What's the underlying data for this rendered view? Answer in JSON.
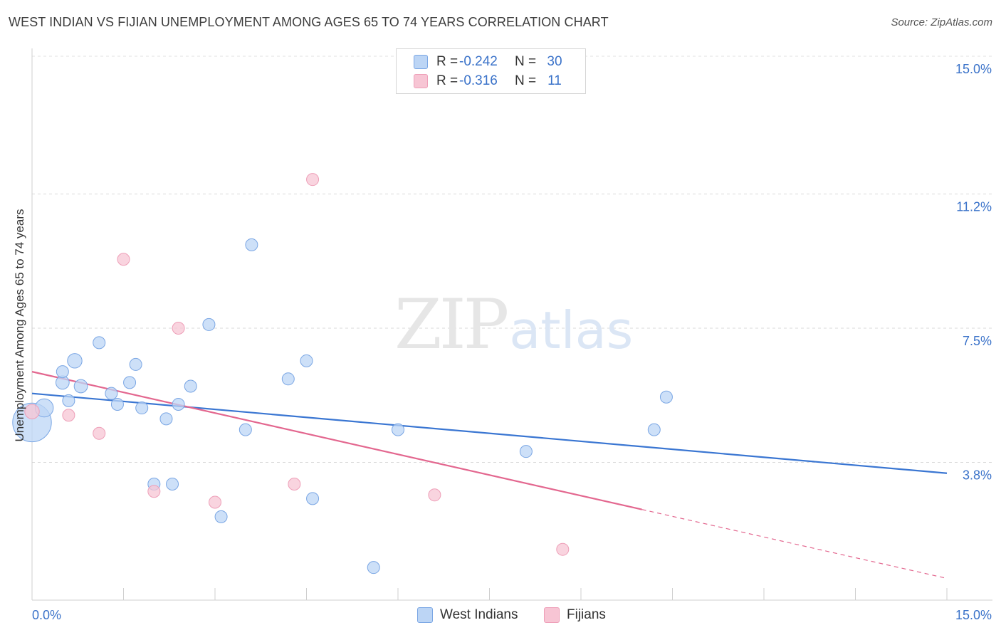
{
  "chart_data": {
    "type": "scatter",
    "title": "WEST INDIAN VS FIJIAN UNEMPLOYMENT AMONG AGES 65 TO 74 YEARS CORRELATION CHART",
    "source": "Source: ZipAtlas.com",
    "xlabel": "",
    "ylabel": "Unemployment Among Ages 65 to 74 years",
    "xlim": [
      0,
      15
    ],
    "ylim": [
      0,
      15
    ],
    "x_tick_labels": [
      "0.0%",
      "15.0%"
    ],
    "y_ticks": [
      3.8,
      7.5,
      11.2,
      15.0
    ],
    "y_tick_labels": [
      "3.8%",
      "7.5%",
      "11.2%",
      "15.0%"
    ],
    "grid": true,
    "watermark": {
      "part1": "ZIP",
      "part2": "atlas"
    },
    "legend": {
      "rows": [
        {
          "r_label": "R = ",
          "r_value": "-0.242",
          "n_label": "N = ",
          "n_value": "30"
        },
        {
          "r_label": "R = ",
          "r_value": "-0.316",
          "n_label": "N = ",
          "n_value": "11"
        }
      ]
    },
    "series": [
      {
        "name": "West Indians",
        "color": "#3a76d2",
        "fill": "#bcd5f5",
        "stroke": "#7aa6e4",
        "points": [
          {
            "x": 0.0,
            "y": 4.9,
            "size": 3.2
          },
          {
            "x": 0.2,
            "y": 5.3,
            "size": 1.5
          },
          {
            "x": 0.5,
            "y": 6.0,
            "size": 1.1
          },
          {
            "x": 0.5,
            "y": 6.3,
            "size": 1.0
          },
          {
            "x": 0.7,
            "y": 6.6,
            "size": 1.2
          },
          {
            "x": 0.8,
            "y": 5.9,
            "size": 1.1
          },
          {
            "x": 0.6,
            "y": 5.5,
            "size": 1.0
          },
          {
            "x": 1.1,
            "y": 7.1,
            "size": 1.0
          },
          {
            "x": 1.3,
            "y": 5.7,
            "size": 1.0
          },
          {
            "x": 1.4,
            "y": 5.4,
            "size": 1.0
          },
          {
            "x": 1.6,
            "y": 6.0,
            "size": 1.0
          },
          {
            "x": 1.7,
            "y": 6.5,
            "size": 1.0
          },
          {
            "x": 1.8,
            "y": 5.3,
            "size": 1.0
          },
          {
            "x": 2.0,
            "y": 3.2,
            "size": 1.0
          },
          {
            "x": 2.2,
            "y": 5.0,
            "size": 1.0
          },
          {
            "x": 2.3,
            "y": 3.2,
            "size": 1.0
          },
          {
            "x": 2.4,
            "y": 5.4,
            "size": 1.0
          },
          {
            "x": 2.6,
            "y": 5.9,
            "size": 1.0
          },
          {
            "x": 2.9,
            "y": 7.6,
            "size": 1.0
          },
          {
            "x": 3.1,
            "y": 2.3,
            "size": 1.0
          },
          {
            "x": 3.5,
            "y": 4.7,
            "size": 1.0
          },
          {
            "x": 3.6,
            "y": 9.8,
            "size": 1.0
          },
          {
            "x": 4.2,
            "y": 6.1,
            "size": 1.0
          },
          {
            "x": 4.5,
            "y": 6.6,
            "size": 1.0
          },
          {
            "x": 4.6,
            "y": 2.8,
            "size": 1.0
          },
          {
            "x": 5.6,
            "y": 0.9,
            "size": 1.0
          },
          {
            "x": 6.0,
            "y": 4.7,
            "size": 1.0
          },
          {
            "x": 8.1,
            "y": 4.1,
            "size": 1.0
          },
          {
            "x": 10.2,
            "y": 4.7,
            "size": 1.0
          },
          {
            "x": 10.4,
            "y": 5.6,
            "size": 1.0
          }
        ],
        "trend": {
          "x1": 0.0,
          "y1": 5.7,
          "x2": 15.0,
          "y2": 3.5,
          "solid_until": 15.0
        }
      },
      {
        "name": "Fijians",
        "color": "#e3678f",
        "fill": "#f7c5d4",
        "stroke": "#ee9fb8",
        "points": [
          {
            "x": 0.0,
            "y": 5.2,
            "size": 1.2
          },
          {
            "x": 0.6,
            "y": 5.1,
            "size": 1.0
          },
          {
            "x": 1.1,
            "y": 4.6,
            "size": 1.0
          },
          {
            "x": 1.5,
            "y": 9.4,
            "size": 1.0
          },
          {
            "x": 2.0,
            "y": 3.0,
            "size": 1.0
          },
          {
            "x": 2.4,
            "y": 7.5,
            "size": 1.0
          },
          {
            "x": 3.0,
            "y": 2.7,
            "size": 1.0
          },
          {
            "x": 4.3,
            "y": 3.2,
            "size": 1.0
          },
          {
            "x": 4.6,
            "y": 11.6,
            "size": 1.0
          },
          {
            "x": 6.6,
            "y": 2.9,
            "size": 1.0
          },
          {
            "x": 8.7,
            "y": 1.4,
            "size": 1.0
          }
        ],
        "trend": {
          "x1": 0.0,
          "y1": 6.3,
          "x2": 15.0,
          "y2": 0.6,
          "solid_until": 10.0
        }
      }
    ]
  }
}
